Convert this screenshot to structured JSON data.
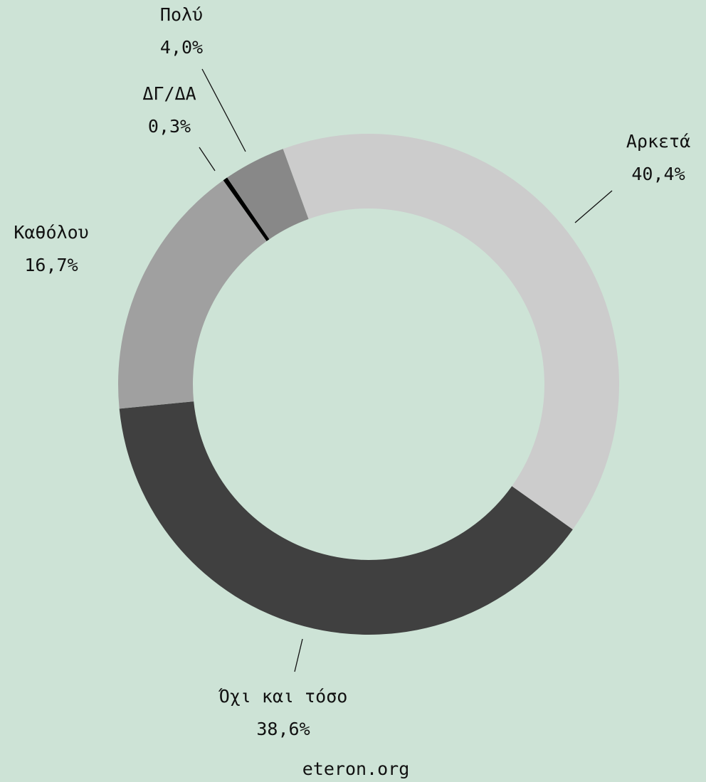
{
  "chart_data": {
    "type": "donut",
    "categories": [
      "Αρκετά",
      "Όχι και τόσο",
      "Καθόλου",
      "ΔΓ/ΔΑ",
      "Πολύ"
    ],
    "values": [
      40.4,
      38.6,
      16.7,
      0.3,
      4.0
    ],
    "value_labels": [
      "40,4%",
      "38,6%",
      "16,7%",
      "0,3%",
      "4,0%"
    ],
    "colors": [
      "#cccccc",
      "#404040",
      "#a0a0a0",
      "#000000",
      "#888888"
    ],
    "source": "eteron.org"
  }
}
